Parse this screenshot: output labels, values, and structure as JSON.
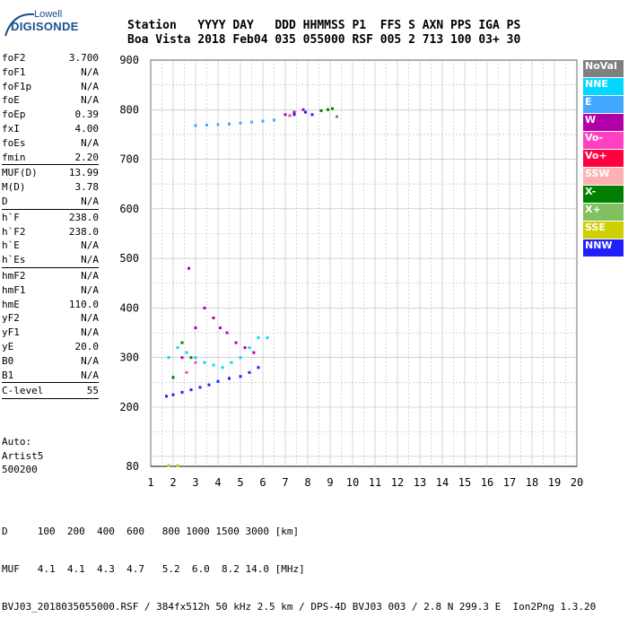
{
  "logo": {
    "line1": "Lowell",
    "line2": "DIGISONDE"
  },
  "header": {
    "labels": "Station   YYYY DAY   DDD HHMMSS P1  FFS S AXN PPS IGA PS",
    "values": "Boa Vista 2018 Feb04 035 055000 RSF 005 2 713 100 03+ 30"
  },
  "params": [
    {
      "label": "foF2",
      "value": "3.700"
    },
    {
      "label": "foF1",
      "value": "N/A"
    },
    {
      "label": "foF1p",
      "value": "N/A"
    },
    {
      "label": "foE",
      "value": "N/A"
    },
    {
      "label": "foEp",
      "value": "0.39"
    },
    {
      "label": "fxI",
      "value": "4.00"
    },
    {
      "label": "foEs",
      "value": "N/A"
    },
    {
      "label": "fmin",
      "value": "2.20"
    },
    {
      "sep": true
    },
    {
      "label": "MUF(D)",
      "value": "13.99"
    },
    {
      "label": "M(D)",
      "value": "3.78"
    },
    {
      "label": "D",
      "value": "N/A"
    },
    {
      "sep": true
    },
    {
      "label": "h`F",
      "value": "238.0"
    },
    {
      "label": "h`F2",
      "value": "238.0"
    },
    {
      "label": "h`E",
      "value": "N/A"
    },
    {
      "label": "h`Es",
      "value": "N/A"
    },
    {
      "sep": true
    },
    {
      "label": "hmF2",
      "value": "N/A"
    },
    {
      "label": "hmF1",
      "value": "N/A"
    },
    {
      "label": "hmE",
      "value": "110.0"
    },
    {
      "label": "yF2",
      "value": "N/A"
    },
    {
      "label": "yF1",
      "value": "N/A"
    },
    {
      "label": "yE",
      "value": "20.0"
    },
    {
      "label": "B0",
      "value": "N/A"
    },
    {
      "label": "B1",
      "value": "N/A"
    },
    {
      "sep": true
    },
    {
      "label": "C-level",
      "value": "55"
    },
    {
      "sep": true
    }
  ],
  "auto": {
    "line1": "Auto:",
    "line2": "Artist5",
    "line3": "500200"
  },
  "legend": [
    {
      "label": "NoVal",
      "color": "#808080"
    },
    {
      "label": "NNE",
      "color": "#00d8ff"
    },
    {
      "label": "E",
      "color": "#40a8ff"
    },
    {
      "label": "W",
      "color": "#b000a8"
    },
    {
      "label": "Vo-",
      "color": "#ff40c0"
    },
    {
      "label": "Vo+",
      "color": "#ff0040"
    },
    {
      "label": "SSW",
      "color": "#ffb0b0"
    },
    {
      "label": "X-",
      "color": "#008000"
    },
    {
      "label": "X+",
      "color": "#80c060"
    },
    {
      "label": "SSE",
      "color": "#d0d000"
    },
    {
      "label": "NNW",
      "color": "#2020ff"
    }
  ],
  "footer": {
    "line1": "D     100  200  400  600   800 1000 1500 3000 [km]",
    "line2": "MUF   4.1  4.1  4.3  4.7   5.2  6.0  8.2 14.0 [MHz]",
    "line3": "BVJ03_2018035055000.RSF / 384fx512h 50 kHz 2.5 km / DPS-4D BVJ03 003 / 2.8 N 299.3 E  Ion2Png 1.3.20"
  },
  "chart_data": {
    "type": "scatter",
    "xlim": [
      1,
      20
    ],
    "ylim": [
      80,
      900
    ],
    "xticks": [
      1,
      2,
      3,
      4,
      5,
      6,
      7,
      8,
      9,
      10,
      11,
      12,
      13,
      14,
      15,
      16,
      17,
      18,
      19,
      20
    ],
    "yticks": [
      80,
      200,
      300,
      400,
      500,
      600,
      700,
      800,
      900
    ],
    "grid": true,
    "series": [
      {
        "name": "NNW",
        "color": "#2020ff",
        "x": [
          1.7,
          2.0,
          2.4,
          2.8,
          3.2,
          3.6,
          4.0,
          4.5,
          5.0,
          5.4,
          5.8,
          7.4,
          7.9,
          8.2
        ],
        "y": [
          222,
          225,
          230,
          235,
          240,
          245,
          252,
          258,
          262,
          270,
          280,
          790,
          795,
          790
        ]
      },
      {
        "name": "W",
        "color": "#b000a8",
        "x": [
          2.0,
          2.4,
          2.7,
          3.0,
          3.4,
          3.8,
          4.1,
          4.4,
          4.8,
          5.2,
          5.6,
          7.0,
          7.4,
          7.8
        ],
        "y": [
          260,
          300,
          480,
          360,
          400,
          380,
          360,
          350,
          330,
          320,
          310,
          790,
          795,
          800
        ]
      },
      {
        "name": "NNE",
        "color": "#00d8ff",
        "x": [
          1.8,
          2.2,
          2.6,
          3.0,
          3.4,
          3.8,
          4.2,
          4.6,
          5.0,
          5.4,
          5.8,
          6.2
        ],
        "y": [
          300,
          320,
          310,
          300,
          290,
          285,
          280,
          290,
          300,
          320,
          340,
          340
        ]
      },
      {
        "name": "E",
        "color": "#40a8ff",
        "x": [
          3.0,
          3.5,
          4.0,
          4.5,
          5.0,
          5.5,
          6.0,
          6.5
        ],
        "y": [
          768,
          769,
          770,
          771,
          773,
          775,
          777,
          779
        ]
      },
      {
        "name": "X-",
        "color": "#008000",
        "x": [
          2.0,
          2.4,
          2.8,
          8.6,
          8.9,
          9.1
        ],
        "y": [
          260,
          330,
          300,
          798,
          800,
          802
        ]
      },
      {
        "name": "Vo-",
        "color": "#ff40c0",
        "x": [
          2.6,
          3.0,
          7.2
        ],
        "y": [
          270,
          290,
          788
        ]
      },
      {
        "name": "SSE",
        "color": "#d0d000",
        "x": [
          1.8,
          2.2
        ],
        "y": [
          82,
          82
        ]
      },
      {
        "name": "NoVal",
        "color": "#808080",
        "x": [
          9.3
        ],
        "y": [
          786
        ]
      }
    ]
  }
}
